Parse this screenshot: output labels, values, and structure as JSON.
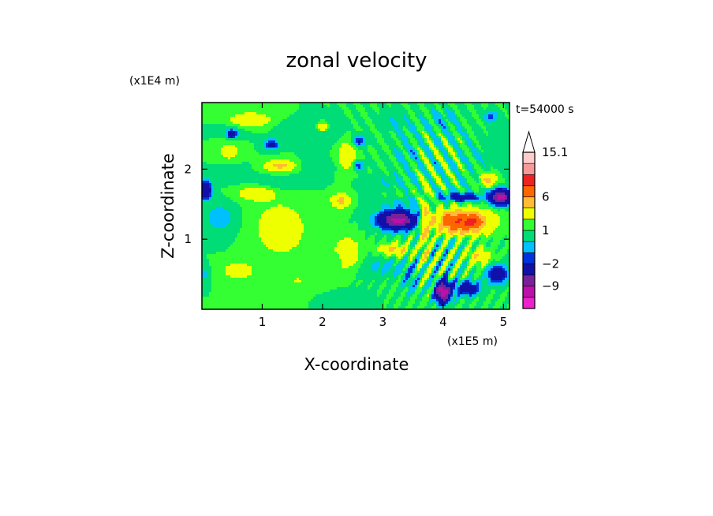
{
  "chart_data": {
    "type": "heatmap",
    "title": "zonal velocity",
    "xlabel": "X-coordinate",
    "ylabel": "Z-coordinate",
    "x_unit": "(x1E5 m)",
    "y_unit": "(x1E4 m)",
    "time_label": "t=54000 s",
    "xlim": [
      0.0,
      5.1
    ],
    "ylim": [
      0.0,
      2.95
    ],
    "x_ticks": [
      {
        "value": 1,
        "label": "1"
      },
      {
        "value": 2,
        "label": "2"
      },
      {
        "value": 3,
        "label": "3"
      },
      {
        "value": 4,
        "label": "4"
      },
      {
        "value": 5,
        "label": "5"
      }
    ],
    "y_ticks": [
      {
        "value": 1,
        "label": "1"
      },
      {
        "value": 2,
        "label": "2"
      }
    ],
    "colorbar": {
      "levels": [
        -15,
        -12,
        -9,
        -6,
        -2,
        -1,
        0,
        1,
        2,
        4,
        6,
        9,
        12,
        15.1
      ],
      "colors": [
        "#ee22cc",
        "#bb11aa",
        "#772299",
        "#1111aa",
        "#0033dd",
        "#00c0ff",
        "#00dd77",
        "#33ff33",
        "#eeff00",
        "#ffbb33",
        "#ff6600",
        "#ee2222",
        "#f59999",
        "#ffcccc"
      ],
      "labels": [
        {
          "value": "15.1",
          "level": 15.1
        },
        {
          "value": "6",
          "level": 6
        },
        {
          "value": "1",
          "level": 1
        },
        {
          "value": "−2",
          "level": -2
        },
        {
          "value": "−9",
          "level": -9
        }
      ],
      "extend": "max"
    },
    "features": [
      {
        "x": 1.3,
        "z": 1.15,
        "u": 2.4,
        "sx": 0.4,
        "sz": 0.35
      },
      {
        "x": 1.6,
        "z": 0.4,
        "u": 1.0,
        "sx": 0.5,
        "sz": 0.25
      },
      {
        "x": 0.6,
        "z": 0.55,
        "u": 2.2,
        "sx": 0.25,
        "sz": 0.12
      },
      {
        "x": 0.3,
        "z": 1.3,
        "u": -1.8,
        "sx": 0.25,
        "sz": 0.2
      },
      {
        "x": 0.05,
        "z": 1.7,
        "u": -7.0,
        "sx": 0.1,
        "sz": 0.12
      },
      {
        "x": 0.05,
        "z": 0.5,
        "u": -1.6,
        "sx": 0.06,
        "sz": 0.1
      },
      {
        "x": 0.9,
        "z": 1.65,
        "u": 2.4,
        "sx": 0.3,
        "sz": 0.1
      },
      {
        "x": 0.8,
        "z": 2.7,
        "u": 2.8,
        "sx": 0.35,
        "sz": 0.1
      },
      {
        "x": 0.5,
        "z": 2.55,
        "u": -0.8,
        "sx": 0.25,
        "sz": 0.12
      },
      {
        "x": 0.45,
        "z": 2.25,
        "u": 1.6,
        "sx": 0.2,
        "sz": 0.15
      },
      {
        "x": 0.5,
        "z": 1.95,
        "u": -1.0,
        "sx": 0.25,
        "sz": 0.12
      },
      {
        "x": 0.5,
        "z": 2.5,
        "u": -4.5,
        "sx": 0.08,
        "sz": 0.06
      },
      {
        "x": 1.15,
        "z": 2.35,
        "u": -4.0,
        "sx": 0.12,
        "sz": 0.07
      },
      {
        "x": 1.3,
        "z": 2.05,
        "u": 3.6,
        "sx": 0.25,
        "sz": 0.08
      },
      {
        "x": 1.3,
        "z": 1.8,
        "u": -0.9,
        "sx": 0.4,
        "sz": 0.1
      },
      {
        "x": 2.0,
        "z": 2.5,
        "u": -1.0,
        "sx": 0.3,
        "sz": 0.15
      },
      {
        "x": 1.9,
        "z": 2.05,
        "u": -0.9,
        "sx": 0.3,
        "sz": 0.1
      },
      {
        "x": 1.5,
        "z": 2.6,
        "u": -0.8,
        "sx": 0.3,
        "sz": 0.1
      },
      {
        "x": 2.0,
        "z": 2.6,
        "u": 3.5,
        "sx": 0.08,
        "sz": 0.06
      },
      {
        "x": 2.4,
        "z": 2.2,
        "u": 2.6,
        "sx": 0.15,
        "sz": 0.2
      },
      {
        "x": 2.3,
        "z": 1.55,
        "u": 3.6,
        "sx": 0.15,
        "sz": 0.1
      },
      {
        "x": 2.6,
        "z": 2.4,
        "u": -3.5,
        "sx": 0.1,
        "sz": 0.07
      },
      {
        "x": 2.6,
        "z": 2.05,
        "u": -3.0,
        "sx": 0.08,
        "sz": 0.06
      },
      {
        "x": 2.4,
        "z": 0.8,
        "u": 3.2,
        "sx": 0.2,
        "sz": 0.2
      },
      {
        "x": 2.3,
        "z": 0.75,
        "u": -1.2,
        "sx": 0.12,
        "sz": 0.1
      },
      {
        "x": 2.3,
        "z": 0.15,
        "u": -0.8,
        "sx": 0.5,
        "sz": 0.12
      },
      {
        "x": 3.25,
        "z": 1.27,
        "u": -11.5,
        "sx": 0.3,
        "sz": 0.12
      },
      {
        "x": 3.3,
        "z": 1.5,
        "u": -1.0,
        "sx": 0.45,
        "sz": 0.1
      },
      {
        "x": 3.2,
        "z": 0.85,
        "u": 3.4,
        "sx": 0.25,
        "sz": 0.08
      },
      {
        "x": 3.0,
        "z": 0.6,
        "u": -1.2,
        "sx": 0.35,
        "sz": 0.15
      },
      {
        "x": 3.45,
        "z": 0.45,
        "u": -1.5,
        "sx": 0.15,
        "sz": 0.2
      },
      {
        "x": 3.0,
        "z": 1.8,
        "u": -0.8,
        "sx": 0.3,
        "sz": 0.12
      },
      {
        "x": 3.4,
        "z": 2.2,
        "u": -0.8,
        "sx": 0.25,
        "sz": 0.4
      },
      {
        "x": 3.2,
        "z": 2.7,
        "u": -1.0,
        "sx": 0.2,
        "sz": 0.15
      },
      {
        "x": 3.7,
        "z": 1.2,
        "u": 2.6,
        "sx": 0.08,
        "sz": 0.55
      },
      {
        "x": 4.3,
        "z": 1.25,
        "u": 8.0,
        "sx": 0.45,
        "sz": 0.16
      },
      {
        "x": 4.5,
        "z": 1.25,
        "u": 3.0,
        "sx": 0.1,
        "sz": 0.08
      },
      {
        "x": 4.95,
        "z": 1.6,
        "u": -12.0,
        "sx": 0.16,
        "sz": 0.1
      },
      {
        "x": 4.3,
        "z": 1.6,
        "u": -5.0,
        "sx": 0.3,
        "sz": 0.06
      },
      {
        "x": 4.0,
        "z": 0.25,
        "u": -12.5,
        "sx": 0.12,
        "sz": 0.15
      },
      {
        "x": 4.4,
        "z": 0.3,
        "u": -5.0,
        "sx": 0.2,
        "sz": 0.1
      },
      {
        "x": 4.9,
        "z": 0.5,
        "u": -6.0,
        "sx": 0.15,
        "sz": 0.12
      },
      {
        "x": 4.6,
        "z": 0.75,
        "u": 2.5,
        "sx": 0.2,
        "sz": 0.12
      },
      {
        "x": 4.0,
        "z": 2.7,
        "u": -1.0,
        "sx": 0.3,
        "sz": 0.2
      },
      {
        "x": 4.7,
        "z": 2.2,
        "u": -0.6,
        "sx": 0.4,
        "sz": 0.4
      },
      {
        "x": 4.75,
        "z": 1.85,
        "u": 3.5,
        "sx": 0.15,
        "sz": 0.1
      },
      {
        "x": 4.8,
        "z": 2.75,
        "u": -2.5,
        "sx": 0.1,
        "sz": 0.08
      }
    ]
  }
}
